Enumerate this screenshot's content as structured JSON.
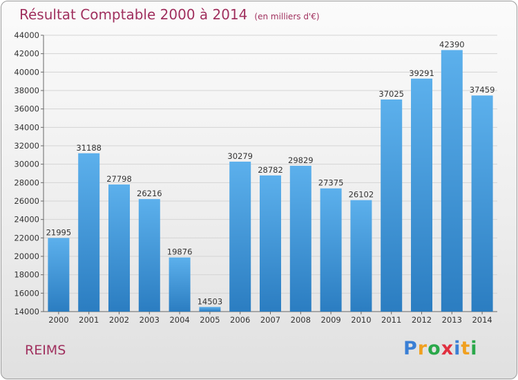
{
  "header": {
    "title": "Résultat Comptable 2000 à 2014",
    "subtitle": "(en milliers d'€)"
  },
  "footer": {
    "city": "REIMS",
    "logo_text": "Proxiti",
    "logo_letters": [
      {
        "ch": "P",
        "color": "#3a7fd5"
      },
      {
        "ch": "r",
        "color": "#f0a020"
      },
      {
        "ch": "o",
        "color": "#2aa84a"
      },
      {
        "ch": "x",
        "color": "#e03040"
      },
      {
        "ch": "i",
        "color": "#3a7fd5"
      },
      {
        "ch": "t",
        "color": "#f0a020"
      },
      {
        "ch": "i",
        "color": "#2aa84a"
      }
    ]
  },
  "colors": {
    "title": "#a0305e",
    "bar_top": "#5cb0ec",
    "bar_bottom": "#2b7dc1",
    "grid": "#d4d4d4"
  },
  "chart_data": {
    "type": "bar",
    "title": "Résultat Comptable 2000 à 2014",
    "subtitle": "(en milliers d'€)",
    "categories": [
      "2000",
      "2001",
      "2002",
      "2003",
      "2004",
      "2005",
      "2006",
      "2007",
      "2008",
      "2009",
      "2010",
      "2011",
      "2012",
      "2013",
      "2014"
    ],
    "values": [
      21995,
      31188,
      27798,
      26216,
      19876,
      14503,
      30279,
      28782,
      29829,
      27375,
      26102,
      37025,
      39291,
      42390,
      37459
    ],
    "ylim": [
      14000,
      44000
    ],
    "yticks": [
      14000,
      16000,
      18000,
      20000,
      22000,
      24000,
      26000,
      28000,
      30000,
      32000,
      34000,
      36000,
      38000,
      40000,
      42000,
      44000
    ],
    "grid": true,
    "data_labels": true,
    "xlabel": "",
    "ylabel": ""
  }
}
